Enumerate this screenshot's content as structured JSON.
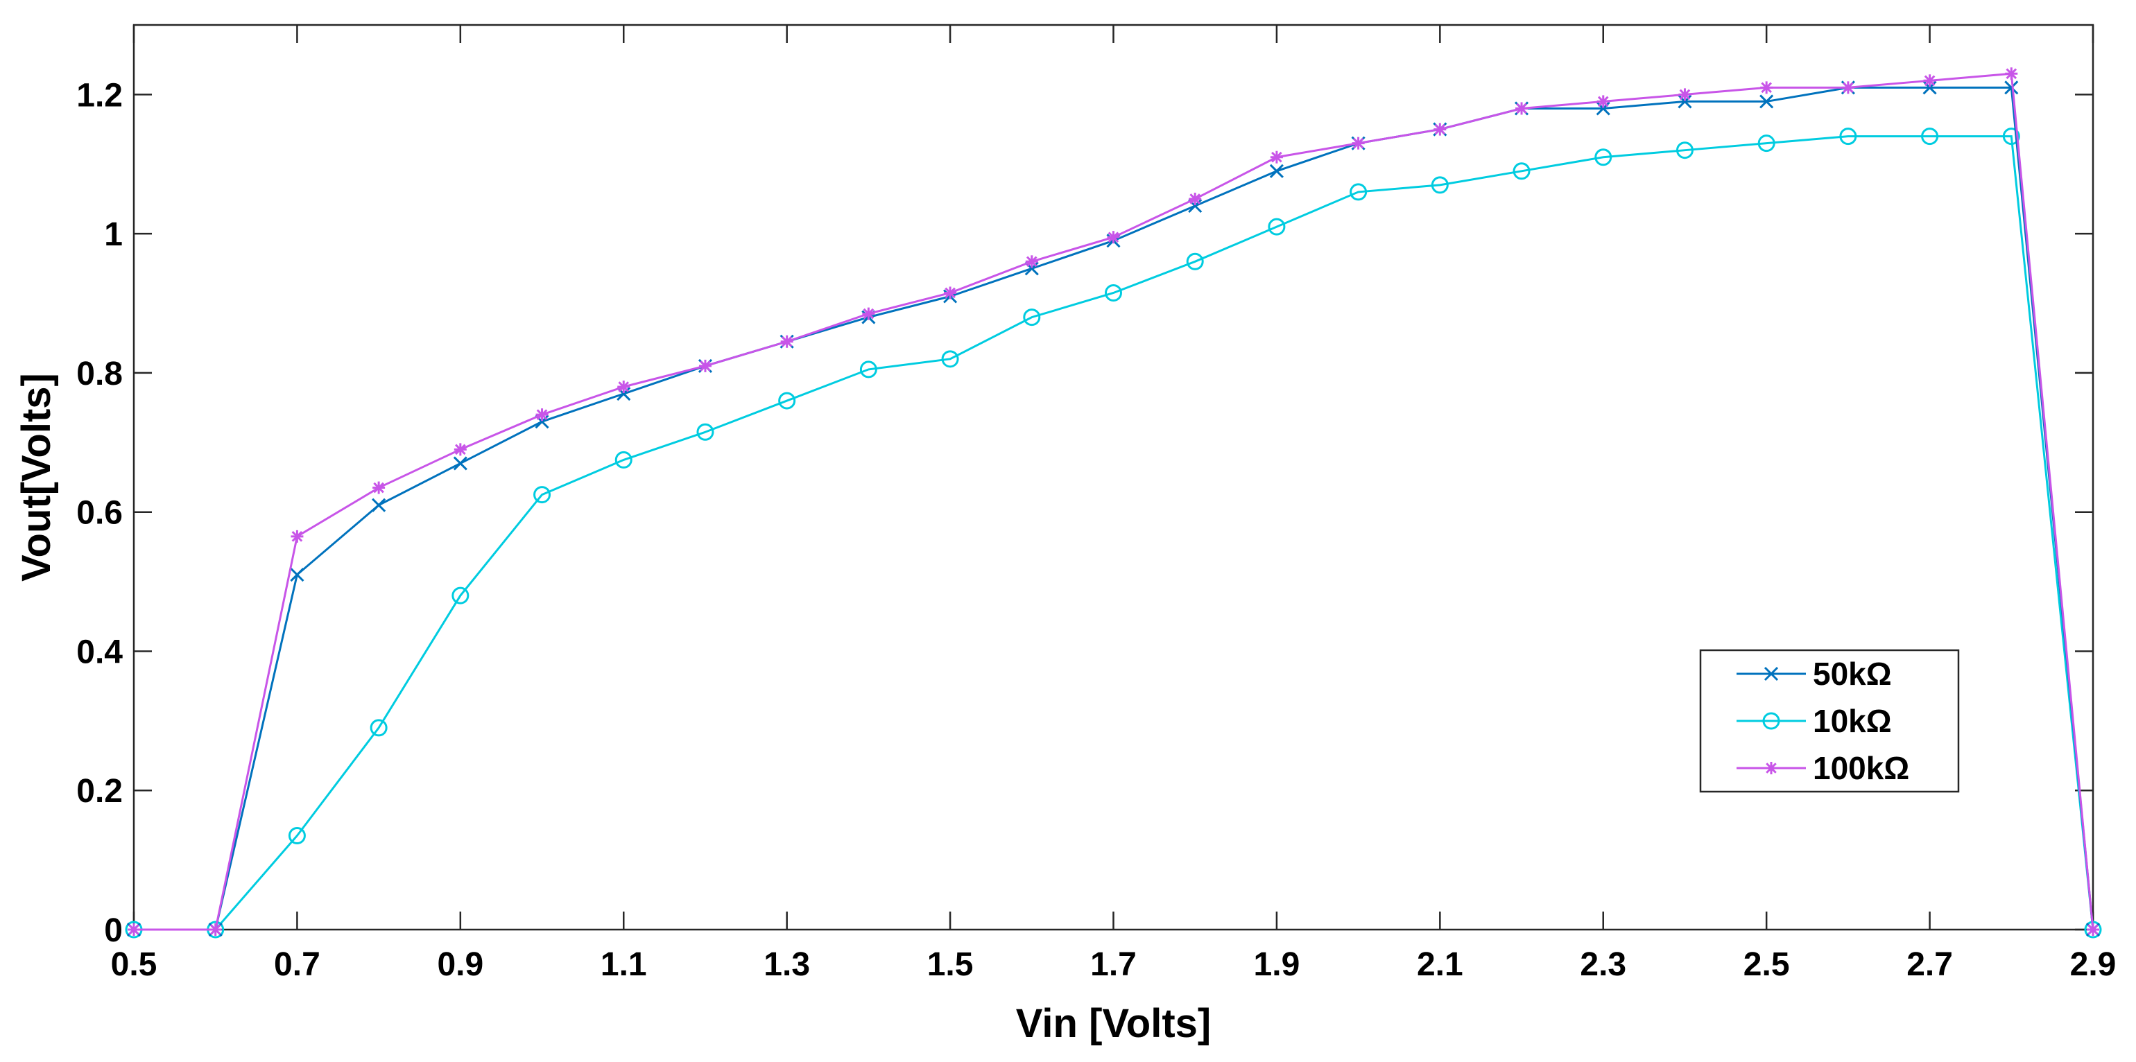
{
  "chart_data": {
    "type": "line",
    "title": "",
    "xlabel": "Vin [Volts]",
    "ylabel": "Vout[Volts]",
    "xlim": [
      0.5,
      2.9
    ],
    "ylim": [
      0,
      1.3
    ],
    "grid": false,
    "legend_position": "bottom-right",
    "xticks": [
      0.5,
      0.7,
      0.9,
      1.1,
      1.3,
      1.5,
      1.7,
      1.9,
      2.1,
      2.3,
      2.5,
      2.7,
      2.9
    ],
    "xtick_labels": [
      "0.5",
      "0.7",
      "0.9",
      "1.1",
      "1.3",
      "1.5",
      "1.7",
      "1.9",
      "2.1",
      "2.3",
      "2.5",
      "2.7",
      "2.9"
    ],
    "yticks": [
      0,
      0.2,
      0.4,
      0.6,
      0.8,
      1.0,
      1.2
    ],
    "ytick_labels": [
      "0",
      "0.2",
      "0.4",
      "0.6",
      "0.8",
      "1",
      "1.2"
    ],
    "x": [
      0.5,
      0.6,
      0.7,
      0.8,
      0.9,
      1.0,
      1.1,
      1.2,
      1.3,
      1.4,
      1.5,
      1.6,
      1.7,
      1.8,
      1.9,
      2.0,
      2.1,
      2.2,
      2.3,
      2.4,
      2.5,
      2.6,
      2.7,
      2.8,
      2.9
    ],
    "series": [
      {
        "name": "50kΩ",
        "color": "#0072BD",
        "marker": "x",
        "values": [
          0,
          0,
          0.51,
          0.61,
          0.67,
          0.73,
          0.77,
          0.81,
          0.845,
          0.88,
          0.91,
          0.95,
          0.99,
          1.04,
          1.09,
          1.13,
          1.15,
          1.18,
          1.18,
          1.19,
          1.19,
          1.21,
          1.21,
          1.21,
          0
        ]
      },
      {
        "name": "10kΩ",
        "color": "#00CCE0",
        "marker": "o",
        "values": [
          0,
          0,
          0.135,
          0.29,
          0.48,
          0.625,
          0.675,
          0.715,
          0.76,
          0.805,
          0.82,
          0.88,
          0.915,
          0.96,
          1.01,
          1.06,
          1.07,
          1.09,
          1.11,
          1.12,
          1.13,
          1.14,
          1.14,
          1.14,
          0
        ]
      },
      {
        "name": "100kΩ",
        "color": "#C855E8",
        "marker": "*",
        "values": [
          0,
          0,
          0.565,
          0.635,
          0.69,
          0.74,
          0.78,
          0.81,
          0.845,
          0.885,
          0.915,
          0.96,
          0.995,
          1.05,
          1.11,
          1.13,
          1.15,
          1.18,
          1.19,
          1.2,
          1.21,
          1.21,
          1.22,
          1.23,
          0
        ]
      }
    ]
  }
}
